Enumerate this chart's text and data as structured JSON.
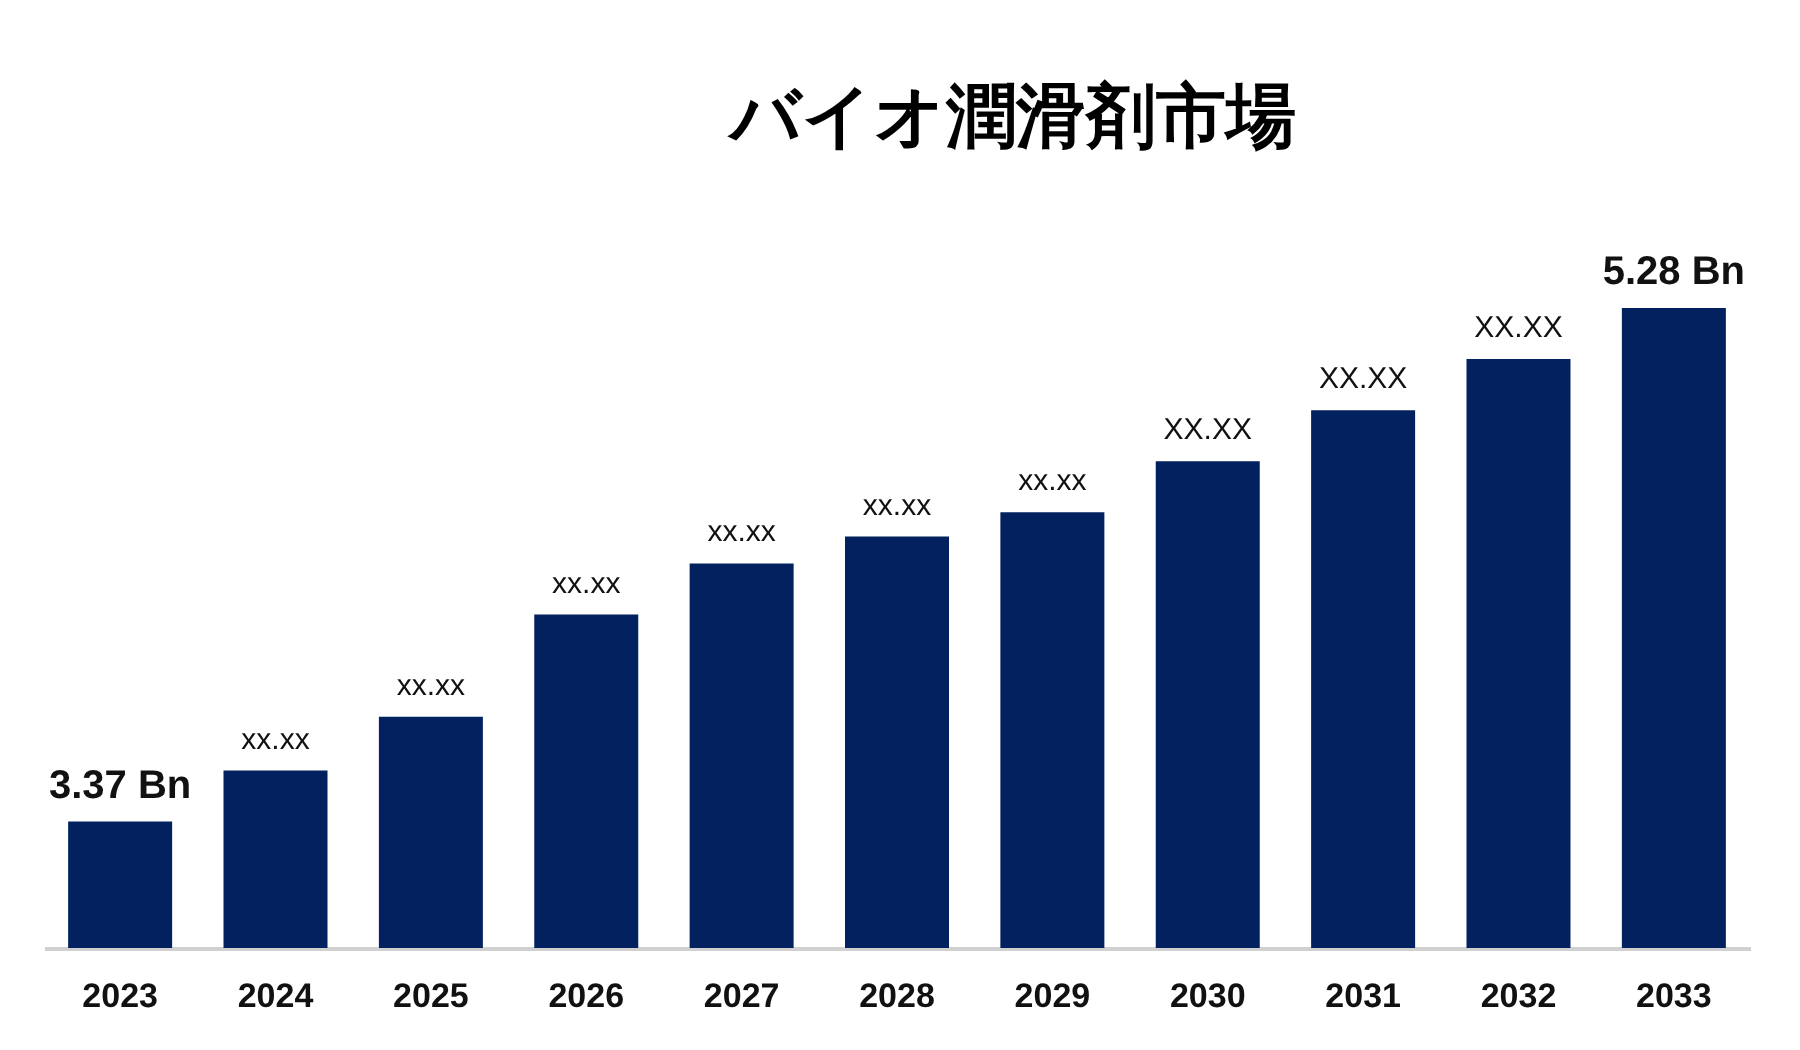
{
  "chart_data": {
    "type": "bar",
    "title": "バイオ潤滑剤市場",
    "categories": [
      "2023",
      "2024",
      "2025",
      "2026",
      "2027",
      "2028",
      "2029",
      "2030",
      "2031",
      "2032",
      "2033"
    ],
    "values": [
      3.37,
      3.56,
      3.76,
      4.14,
      4.33,
      4.43,
      4.52,
      4.71,
      4.9,
      5.09,
      5.28
    ],
    "ylim": [
      2.9,
      5.28
    ],
    "tick_labels": "x",
    "color": "#03215f",
    "value_labels": [
      "3.37 Bn",
      "xx.xx",
      "xx.xx",
      "xx.xx",
      "xx.xx",
      "xx.xx",
      "xx.xx",
      "XX.XX",
      "XX.XX",
      "XX.XX",
      "5.28 Bn"
    ]
  }
}
